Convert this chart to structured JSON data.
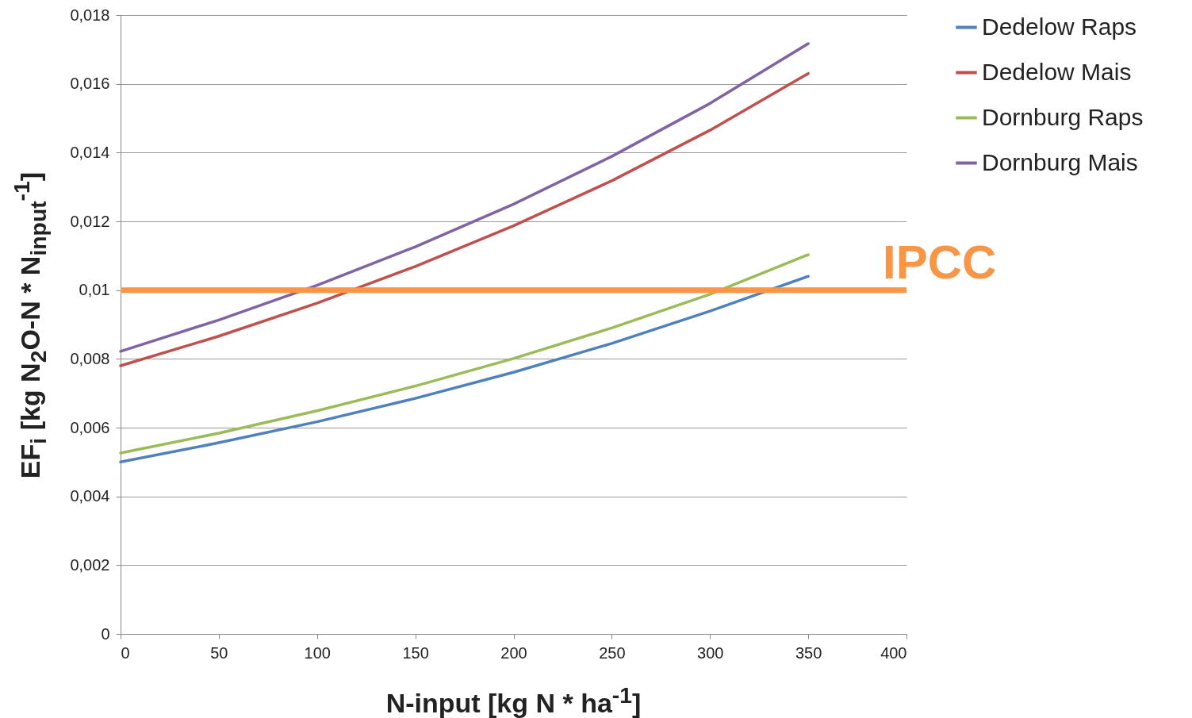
{
  "chart_data": {
    "type": "line",
    "xlabel": "N-input [kg N * ha$^{-1}$]",
    "ylabel": "EF$_{i}$ [kg N$_{2}$O-N * N$_{input}$$^{-1}$]",
    "x": [
      0,
      50,
      100,
      150,
      200,
      250,
      300,
      350
    ],
    "series": [
      {
        "name": "Dedelow Raps",
        "color": "#4f81bd",
        "values": [
          0.005,
          0.00556,
          0.00617,
          0.00685,
          0.00761,
          0.00845,
          0.00939,
          0.0104
        ]
      },
      {
        "name": "Dedelow Mais",
        "color": "#c0504d",
        "values": [
          0.0078,
          0.00866,
          0.00962,
          0.01069,
          0.01187,
          0.01318,
          0.01465,
          0.0163
        ]
      },
      {
        "name": "Dornburg Raps",
        "color": "#9bbb59",
        "values": [
          0.00526,
          0.00584,
          0.00649,
          0.00721,
          0.00801,
          0.0089,
          0.00988,
          0.01103
        ]
      },
      {
        "name": "Dornburg Mais",
        "color": "#8064a2",
        "values": [
          0.00822,
          0.00913,
          0.01014,
          0.01126,
          0.0125,
          0.01389,
          0.01543,
          0.01717
        ]
      }
    ],
    "xlim": [
      0,
      400
    ],
    "xticks": [
      0,
      50,
      100,
      150,
      200,
      250,
      300,
      350,
      400
    ],
    "ylim": [
      0,
      0.018
    ],
    "yticks": [
      0,
      {
        "value": 0.002,
        "label": "0,002"
      },
      {
        "value": 0.004,
        "label": "0,004"
      },
      {
        "value": 0.006,
        "label": "0,006"
      },
      {
        "value": 0.008,
        "label": "0,008"
      },
      {
        "value": 0.01,
        "label": "0,01"
      },
      {
        "value": 0.012,
        "label": "0,012"
      },
      {
        "value": 0.014,
        "label": "0,014"
      },
      {
        "value": 0.016,
        "label": "0,016"
      },
      {
        "value": 0.018,
        "label": "0,018"
      }
    ],
    "ref_lines": [
      {
        "axis": "y",
        "value": 0.01,
        "label": "IPCC",
        "color": "#f79646"
      }
    ],
    "grid": "y",
    "legend": "right",
    "marker": "none",
    "line_style": "solid"
  }
}
